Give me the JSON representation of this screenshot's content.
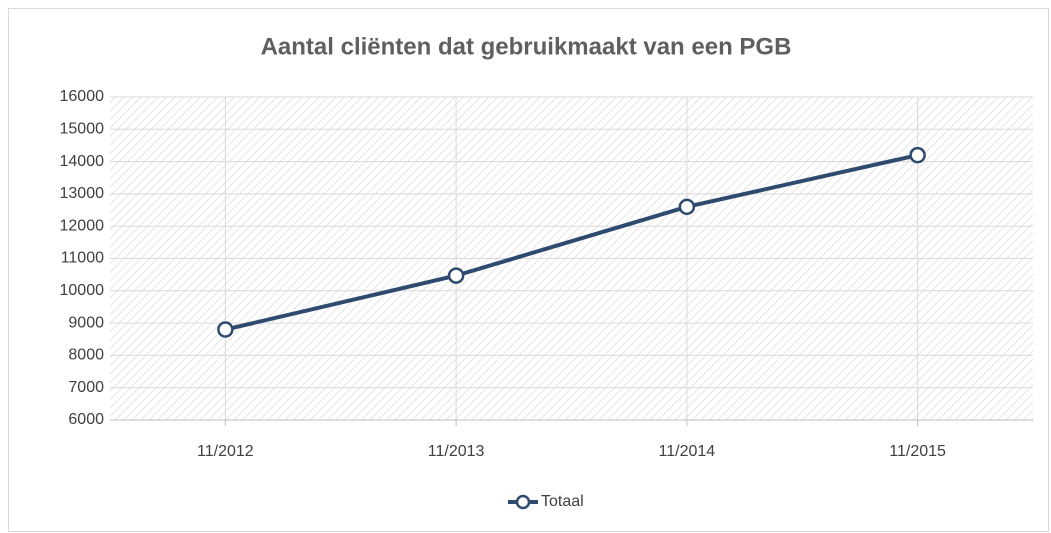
{
  "chart_data": {
    "type": "line",
    "title": "Aantal cliënten dat gebruikmaakt van een PGB",
    "categories": [
      "11/2012",
      "11/2013",
      "11/2014",
      "11/2015"
    ],
    "series": [
      {
        "name": "Totaal",
        "color": "#2e4a6e",
        "values": [
          8800,
          10470,
          12600,
          14200
        ]
      }
    ],
    "ylim": [
      6000,
      16000
    ],
    "yticks": [
      6000,
      7000,
      8000,
      9000,
      10000,
      11000,
      12000,
      13000,
      14000,
      15000,
      16000
    ],
    "grid": true,
    "legend": "bottom"
  }
}
